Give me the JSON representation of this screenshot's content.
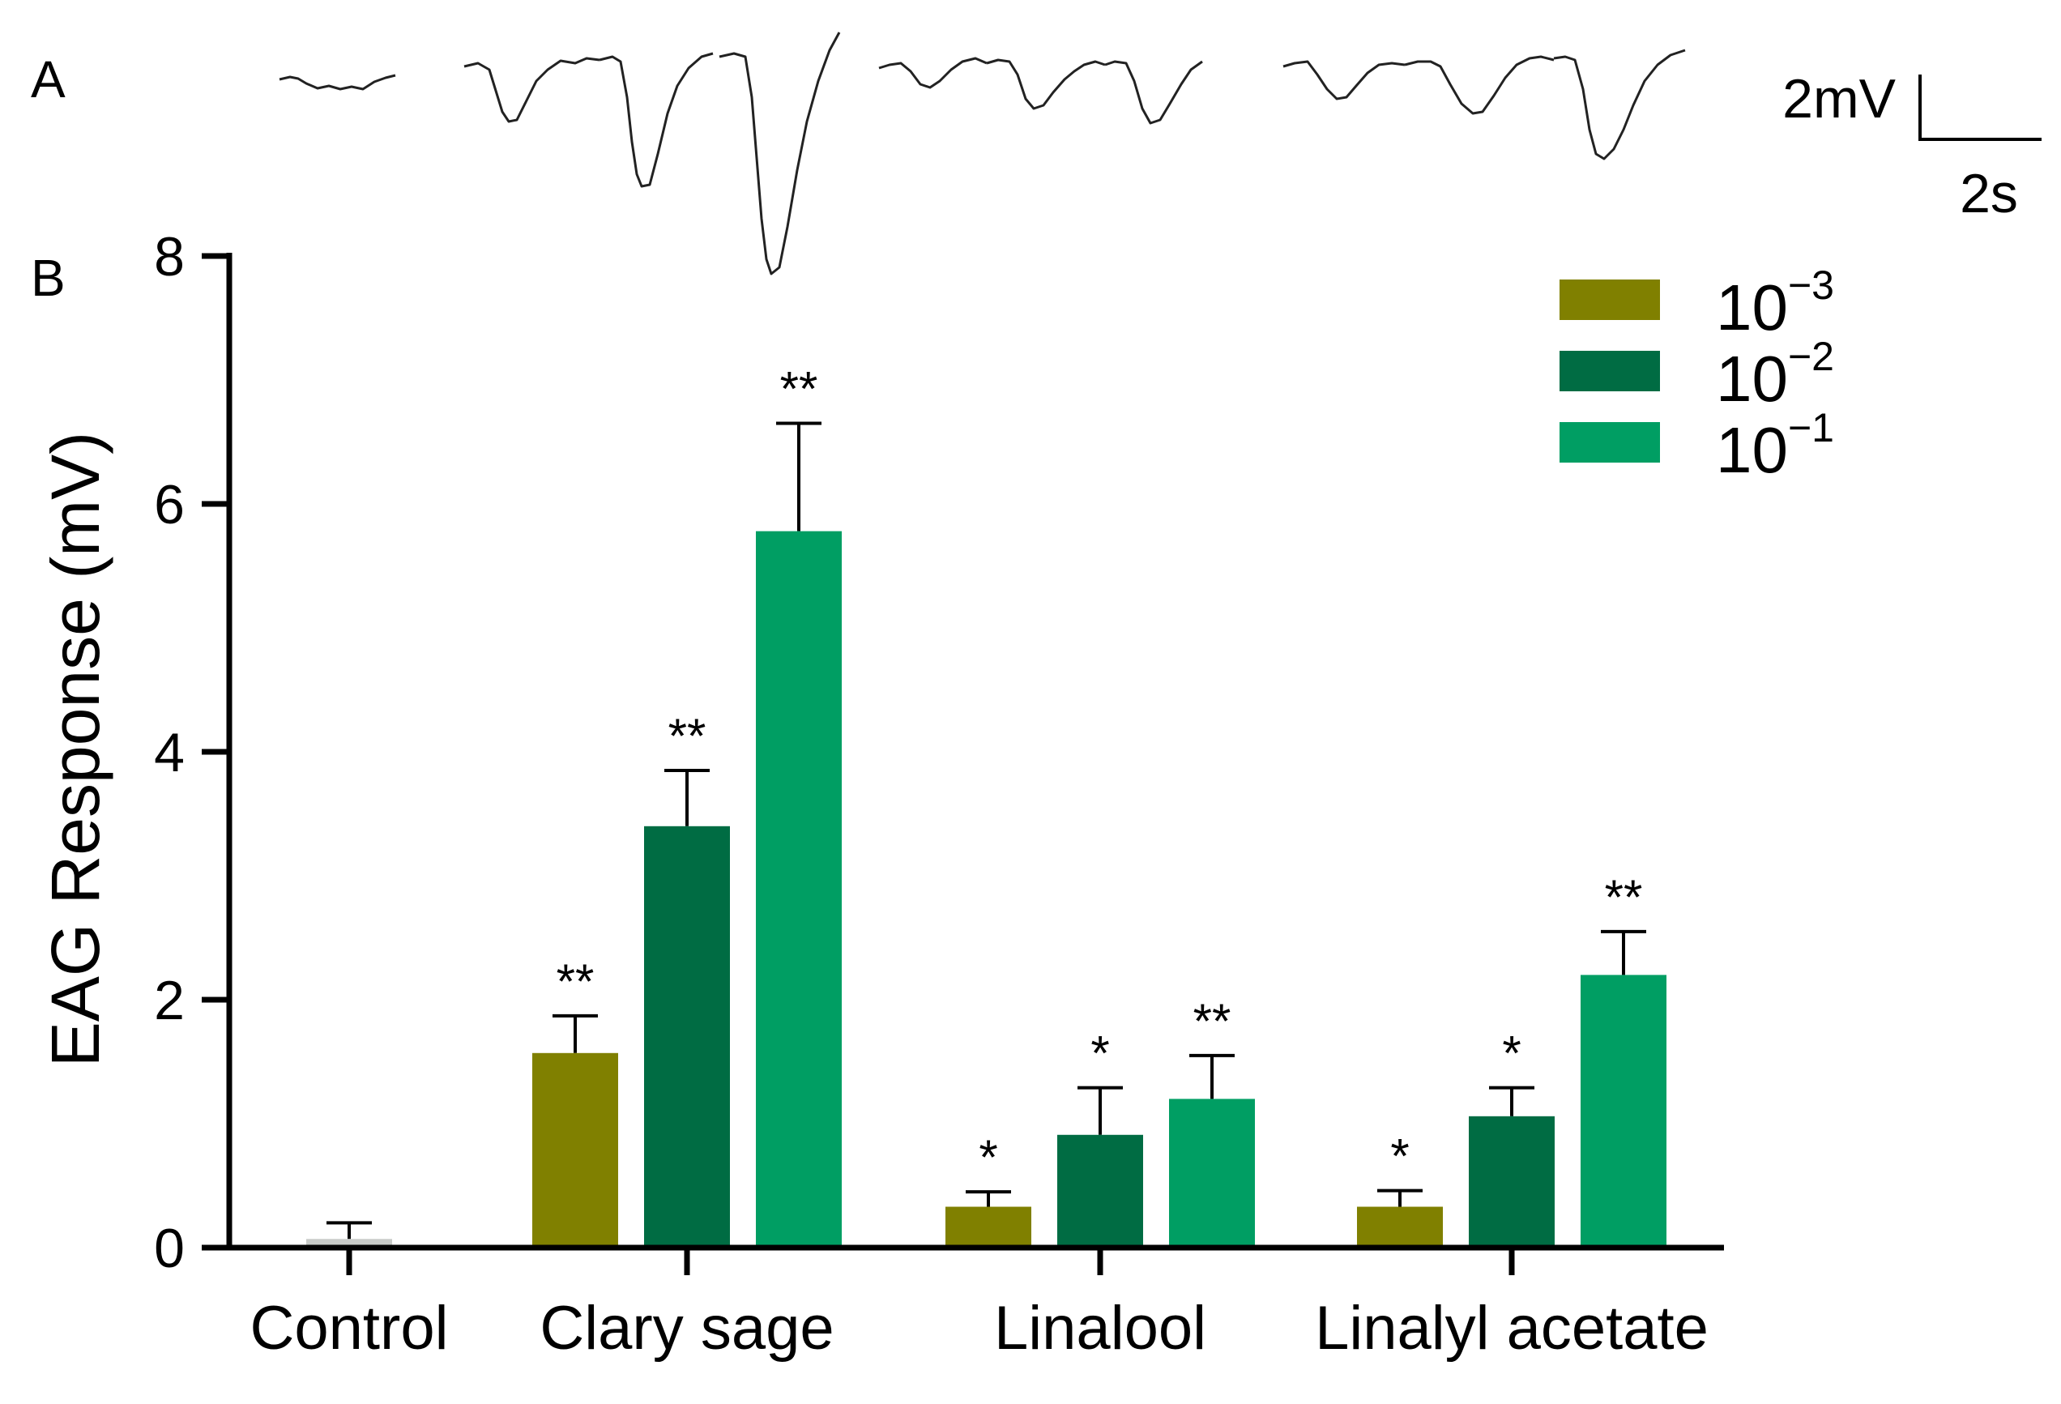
{
  "panels": {
    "a_label": "A",
    "b_label": "B"
  },
  "scale_bar": {
    "voltage_label": "2mV",
    "time_label": "2s"
  },
  "legend": {
    "items": [
      {
        "base": "10",
        "exponent": "−3",
        "color": "#808000"
      },
      {
        "base": "10",
        "exponent": "−2",
        "color": "#006c43"
      },
      {
        "base": "10",
        "exponent": "−1",
        "color": "#009e63"
      }
    ]
  },
  "colors": {
    "control": "#c8cbc8",
    "axis": "#000000",
    "trace": "#222222"
  },
  "chart_data": {
    "type": "bar",
    "title": "",
    "xlabel": "",
    "ylabel": "EAG Response (mV)",
    "ylim": [
      0,
      8
    ],
    "yticks": [
      0,
      2,
      4,
      6,
      8
    ],
    "grid": false,
    "legend_position": "top-right",
    "groups": [
      {
        "category": "Control",
        "bars": [
          {
            "series": "control",
            "value": 0.07,
            "error": 0.13,
            "sig": ""
          }
        ]
      },
      {
        "category": "Clary sage",
        "bars": [
          {
            "series": "10^-3",
            "value": 1.57,
            "error": 0.3,
            "sig": "**"
          },
          {
            "series": "10^-2",
            "value": 3.4,
            "error": 0.45,
            "sig": "**"
          },
          {
            "series": "10^-1",
            "value": 5.78,
            "error": 0.87,
            "sig": "**"
          }
        ]
      },
      {
        "category": "Linalool",
        "bars": [
          {
            "series": "10^-3",
            "value": 0.33,
            "error": 0.12,
            "sig": "*"
          },
          {
            "series": "10^-2",
            "value": 0.91,
            "error": 0.38,
            "sig": "*"
          },
          {
            "series": "10^-1",
            "value": 1.2,
            "error": 0.35,
            "sig": "**"
          }
        ]
      },
      {
        "category": "Linalyl acetate",
        "bars": [
          {
            "series": "10^-3",
            "value": 0.33,
            "error": 0.13,
            "sig": "*"
          },
          {
            "series": "10^-2",
            "value": 1.06,
            "error": 0.23,
            "sig": "*"
          },
          {
            "series": "10^-1",
            "value": 2.2,
            "error": 0.35,
            "sig": "**"
          }
        ]
      }
    ]
  }
}
